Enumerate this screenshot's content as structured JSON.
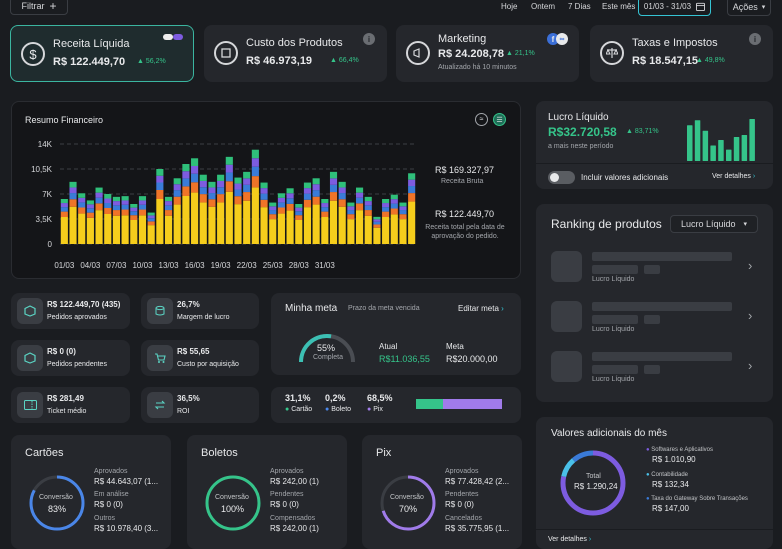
{
  "toolbar": {
    "filter_label": "Filtrar",
    "periods": [
      "Hoje",
      "Ontem",
      "7 Dias",
      "Este mês"
    ],
    "date_range": "01/03 - 31/03",
    "actions_label": "Ações"
  },
  "kpis": [
    {
      "title": "Receita Líquida",
      "value": "R$ 122.449,70",
      "change": "56,2%",
      "icon": "dollar-icon"
    },
    {
      "title": "Custo dos Produtos",
      "value": "R$ 46.973,19",
      "change": "66,4%",
      "icon": "box-icon"
    },
    {
      "title": "Marketing",
      "value": "R$ 24.208,78",
      "change": "21,1%",
      "subtitle": "Atualizado há 10 minutos",
      "icon": "megaphone-icon"
    },
    {
      "title": "Taxas e Impostos",
      "value": "R$ 18.547,15",
      "change": "49,8%",
      "icon": "scale-icon"
    }
  ],
  "summary": {
    "title": "Resumo Financeiro",
    "gross_value": "R$ 169.327,97",
    "gross_label": "Receita Bruta",
    "total_value": "R$ 122.449,70",
    "total_label": "Receita total pela data de aprovação do pedido."
  },
  "chart_data": {
    "type": "bar",
    "stacked": true,
    "yticks": [
      "14K",
      "10,5K",
      "7K",
      "3,5K",
      "0"
    ],
    "ylim": [
      0,
      14000
    ],
    "xticks": [
      "01/03",
      "04/03",
      "07/03",
      "10/03",
      "13/03",
      "16/03",
      "19/03",
      "22/03",
      "25/03",
      "28/03",
      "31/03"
    ],
    "colors": [
      "#f5cd1c",
      "#ef7428",
      "#3a7bd8",
      "#7d5ce0",
      "#2fbf7a"
    ],
    "totals": [
      6300,
      8700,
      7100,
      6100,
      7900,
      7000,
      6600,
      6700,
      5600,
      6700,
      4400,
      10500,
      6600,
      9200,
      11200,
      12000,
      9700,
      8700,
      9700,
      12200,
      9300,
      10100,
      13200,
      8600,
      5800,
      7100,
      7800,
      5600,
      8600,
      9200,
      6300,
      10100,
      8700,
      5800,
      7900,
      6600,
      3800,
      6300,
      6900,
      5800,
      9900
    ]
  },
  "net_profit": {
    "title": "Lucro Líquido",
    "value": "R$32.720,58",
    "change": "83,71%",
    "subtitle": "a mais neste período",
    "toggle_label": "Incluir valores adicionais",
    "details_label": "Ver detalhes",
    "bars": [
      0.85,
      0.97,
      0.72,
      0.37,
      0.5,
      0.27,
      0.57,
      0.62,
      1.0
    ]
  },
  "ranking": {
    "title": "Ranking de produtos",
    "select_value": "Lucro Líquido",
    "item_label": "Lucro Líquido"
  },
  "stats": [
    {
      "value": "R$ 122.449,70 (435)",
      "label": "Pedidos aprovados",
      "icon": "package-icon"
    },
    {
      "value": "26,7%",
      "label": "Margem de lucro",
      "icon": "database-icon"
    },
    {
      "value": "R$ 0 (0)",
      "label": "Pedidos pendentes",
      "icon": "package-icon"
    },
    {
      "value": "R$ 55,65",
      "label": "Custo por aquisição",
      "icon": "cart-icon"
    },
    {
      "value": "R$ 281,49",
      "label": "Ticket médio",
      "icon": "ticket-icon"
    },
    {
      "value": "36,5%",
      "label": "ROI",
      "icon": "exchange-icon"
    }
  ],
  "goal": {
    "title": "Minha meta",
    "note": "Prazo da meta vencida",
    "edit_label": "Editar meta",
    "percent": "55%",
    "percent_value": 0.55,
    "complete_label": "Completa",
    "current_label": "Atual",
    "current_value": "R$11.036,55",
    "target_label": "Meta",
    "target_value": "R$20.000,00"
  },
  "methods": [
    {
      "pct": "31,1%",
      "label": "Cartão",
      "color": "#35c48a",
      "share": 0.311
    },
    {
      "pct": "0,2%",
      "label": "Boleto",
      "color": "#4a86e8",
      "share": 0.002
    },
    {
      "pct": "68,5%",
      "label": "Pix",
      "color": "#a07bea",
      "share": 0.685
    }
  ],
  "payments": [
    {
      "title": "Cartões",
      "conv_label": "Conversão",
      "conv": "83%",
      "conv_value": 0.83,
      "color": "#4a86e8",
      "rows": [
        [
          "Aprovados",
          "R$ 44.643,07 (1..."
        ],
        [
          "Em análise",
          "R$ 0 (0)"
        ],
        [
          "Outros",
          "R$ 10.978,40 (3..."
        ]
      ]
    },
    {
      "title": "Boletos",
      "conv_label": "Conversão",
      "conv": "100%",
      "conv_value": 1.0,
      "color": "#35c48a",
      "rows": [
        [
          "Aprovados",
          "R$ 242,00 (1)"
        ],
        [
          "Pendentes",
          "R$ 0 (0)"
        ],
        [
          "Compensados",
          "R$ 242,00 (1)"
        ]
      ]
    },
    {
      "title": "Pix",
      "conv_label": "Conversão",
      "conv": "70%",
      "conv_value": 0.7,
      "color": "#a07bea",
      "rows": [
        [
          "Aprovados",
          "R$ 77.428,42 (2..."
        ],
        [
          "Pendentes",
          "R$ 0 (0)"
        ],
        [
          "Cancelados",
          "R$ 35.775,95 (1..."
        ]
      ]
    }
  ],
  "additional": {
    "title": "Valores adicionais do mês",
    "total_label": "Total",
    "total_value": "R$ 1.290,24",
    "details_label": "Ver detalhes",
    "items": [
      {
        "label": "Softwares e Aplicativos",
        "value": "R$ 1.010,90",
        "color": "#7d5ce0"
      },
      {
        "label": "Contabilidade",
        "value": "R$ 132,34",
        "color": "#4ac0e8"
      },
      {
        "label": "Taxa do Gateway Sobre Transações",
        "value": "R$ 147,00",
        "color": "#3a7bd8"
      }
    ]
  }
}
